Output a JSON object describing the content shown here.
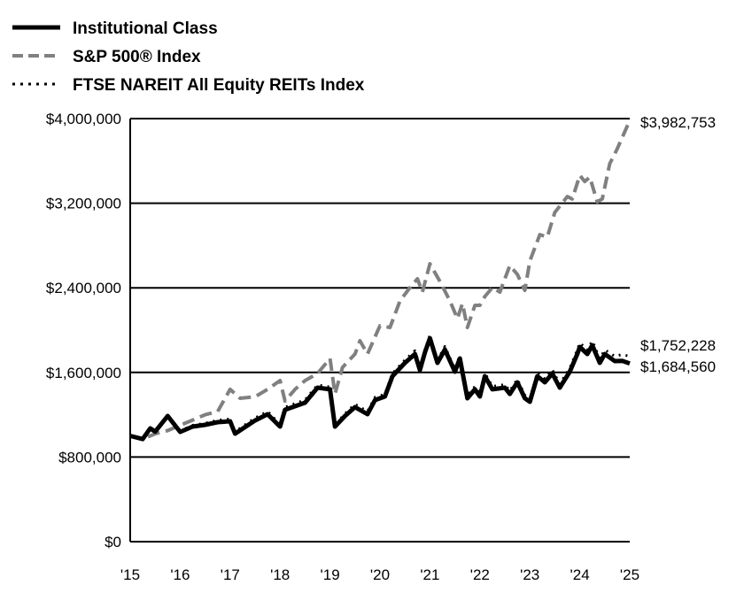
{
  "chart_data": {
    "type": "line",
    "title": "",
    "xlabel": "",
    "ylabel": "",
    "xlim": [
      2015,
      2025
    ],
    "ylim": [
      0,
      4000000
    ],
    "grid": "horizontal",
    "legend_position": "top-left",
    "x_tick_labels": [
      "'15",
      "'16",
      "'17",
      "'18",
      "'19",
      "'20",
      "'21",
      "'22",
      "'23",
      "'24",
      "'25"
    ],
    "x_ticks": [
      2015,
      2016,
      2017,
      2018,
      2019,
      2020,
      2021,
      2022,
      2023,
      2024,
      2025
    ],
    "y_ticks": [
      0,
      800000,
      1600000,
      2400000,
      3200000,
      4000000
    ],
    "y_tick_labels": [
      "$0",
      "$800,000",
      "$1,600,000",
      "$2,400,000",
      "$3,200,000",
      "$4,000,000"
    ],
    "series": [
      {
        "name": "Institutional Class",
        "color": "#000000",
        "style": "solid",
        "end_label": "$1,684,560",
        "x": [
          2015,
          2015.25,
          2015.4,
          2015.5,
          2015.75,
          2016,
          2016.25,
          2016.5,
          2016.75,
          2017,
          2017.1,
          2017.5,
          2017.75,
          2018,
          2018.1,
          2018.5,
          2018.75,
          2019,
          2019.1,
          2019.3,
          2019.5,
          2019.75,
          2019.9,
          2020.1,
          2020.25,
          2020.5,
          2020.7,
          2020.8,
          2020.9,
          2021,
          2021.15,
          2021.3,
          2021.5,
          2021.6,
          2021.75,
          2021.9,
          2022,
          2022.1,
          2022.25,
          2022.5,
          2022.6,
          2022.75,
          2022.9,
          2023,
          2023.15,
          2023.3,
          2023.45,
          2023.6,
          2023.8,
          2023.95,
          2024,
          2024.15,
          2024.25,
          2024.4,
          2024.5,
          2024.7,
          2024.85,
          2025
        ],
        "y": [
          1000000,
          970000,
          1071000,
          1040000,
          1188000,
          1038000,
          1088000,
          1105000,
          1130000,
          1138000,
          1021000,
          1146000,
          1205000,
          1088000,
          1247000,
          1314000,
          1456000,
          1440000,
          1088000,
          1188000,
          1272000,
          1205000,
          1339000,
          1372000,
          1565000,
          1690000,
          1774000,
          1623000,
          1790000,
          1924000,
          1690000,
          1816000,
          1607000,
          1732000,
          1356000,
          1440000,
          1372000,
          1565000,
          1440000,
          1456000,
          1397000,
          1506000,
          1356000,
          1322000,
          1565000,
          1506000,
          1590000,
          1456000,
          1607000,
          1774000,
          1841000,
          1774000,
          1857000,
          1690000,
          1774000,
          1707000,
          1710000,
          1684560
        ]
      },
      {
        "name": "S&P 500® Index",
        "color": "#808080",
        "style": "dashed",
        "end_label": "$3,982,753",
        "x": [
          2015,
          2015.25,
          2015.5,
          2015.75,
          2016,
          2016.25,
          2016.5,
          2016.75,
          2017,
          2017.2,
          2017.5,
          2017.75,
          2018,
          2018.1,
          2018.3,
          2018.5,
          2018.75,
          2019,
          2019.1,
          2019.25,
          2019.5,
          2019.6,
          2019.75,
          2020,
          2020.2,
          2020.4,
          2020.6,
          2020.75,
          2020.85,
          2021,
          2021.2,
          2021.4,
          2021.55,
          2021.65,
          2021.75,
          2021.9,
          2022,
          2022.1,
          2022.25,
          2022.4,
          2022.6,
          2022.75,
          2022.9,
          2023,
          2023.2,
          2023.35,
          2023.5,
          2023.75,
          2023.85,
          2024,
          2024.1,
          2024.2,
          2024.35,
          2024.45,
          2024.6,
          2024.75,
          2025
        ],
        "y": [
          1000000,
          970000,
          1020000,
          1050000,
          1100000,
          1150000,
          1200000,
          1230000,
          1440000,
          1356000,
          1370000,
          1440000,
          1523000,
          1330000,
          1440000,
          1523000,
          1590000,
          1732000,
          1397000,
          1648000,
          1774000,
          1900000,
          1774000,
          2042000,
          2025000,
          2276000,
          2402000,
          2485000,
          2360000,
          2628000,
          2460000,
          2276000,
          2109000,
          2251000,
          2025000,
          2234000,
          2234000,
          2318000,
          2402000,
          2360000,
          2611000,
          2527000,
          2376000,
          2653000,
          2903000,
          2880000,
          3113000,
          3263000,
          3240000,
          3464000,
          3405000,
          3447000,
          3213000,
          3240000,
          3573000,
          3715000,
          3982753
        ]
      },
      {
        "name": "FTSE NAREIT All Equity REITs Index",
        "color": "#000000",
        "style": "dotted",
        "end_label": "$1,752,228",
        "x": [
          2015,
          2015.25,
          2015.4,
          2015.5,
          2015.75,
          2016,
          2016.25,
          2016.5,
          2016.75,
          2017,
          2017.1,
          2017.5,
          2017.75,
          2018,
          2018.1,
          2018.5,
          2018.75,
          2019,
          2019.1,
          2019.3,
          2019.5,
          2019.75,
          2019.9,
          2020.1,
          2020.25,
          2020.5,
          2020.7,
          2020.8,
          2020.9,
          2021,
          2021.15,
          2021.3,
          2021.5,
          2021.6,
          2021.75,
          2021.9,
          2022,
          2022.1,
          2022.25,
          2022.5,
          2022.6,
          2022.75,
          2022.9,
          2023,
          2023.15,
          2023.3,
          2023.45,
          2023.6,
          2023.8,
          2023.95,
          2024,
          2024.15,
          2024.25,
          2024.4,
          2024.5,
          2024.7,
          2024.85,
          2025
        ],
        "y": [
          1000000,
          975000,
          1080000,
          1050000,
          1195000,
          1048000,
          1100000,
          1120000,
          1148000,
          1160000,
          1040000,
          1170000,
          1232000,
          1110000,
          1272000,
          1340000,
          1482000,
          1462000,
          1105000,
          1210000,
          1300000,
          1232000,
          1365000,
          1395000,
          1590000,
          1718000,
          1805000,
          1650000,
          1818000,
          1950000,
          1715000,
          1845000,
          1632000,
          1762000,
          1380000,
          1468000,
          1398000,
          1595000,
          1468000,
          1485000,
          1425000,
          1536000,
          1385000,
          1350000,
          1598000,
          1540000,
          1625000,
          1490000,
          1642000,
          1812000,
          1880000,
          1814000,
          1898000,
          1730000,
          1815000,
          1752000,
          1770000,
          1752228
        ]
      }
    ]
  }
}
